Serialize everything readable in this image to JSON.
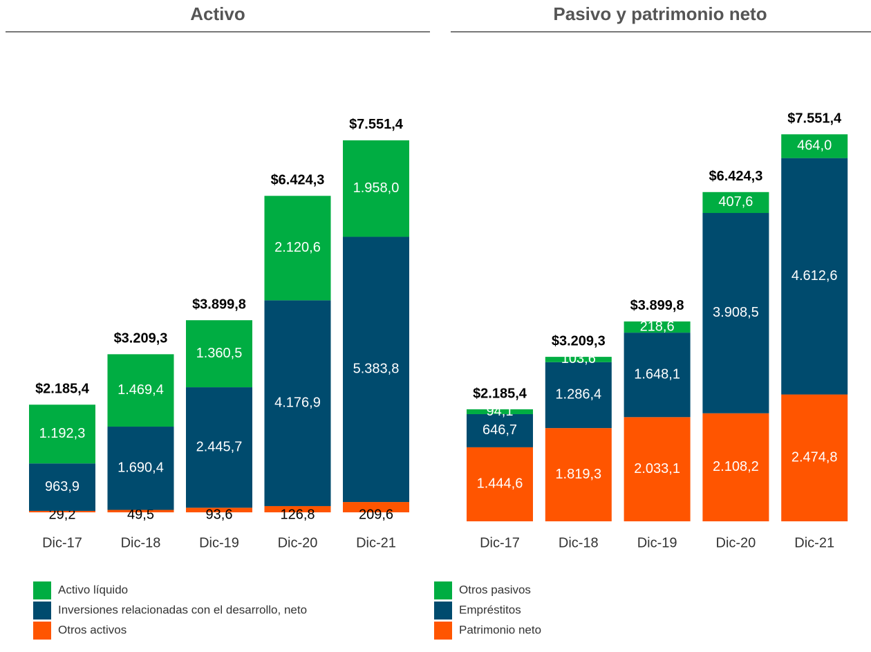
{
  "chart_data": [
    {
      "type": "stacked_bar",
      "title": "Activo",
      "categories": [
        "Dic-17",
        "Dic-18",
        "Dic-19",
        "Dic-20",
        "Dic-21"
      ],
      "ylim": [
        0,
        8000
      ],
      "series": [
        {
          "name": "Otros activos",
          "color": "#ff5500",
          "values": [
            29.2,
            49.5,
            93.6,
            126.8,
            209.6
          ],
          "value_labels": [
            "29,2",
            "49,5",
            "93,6",
            "126,8",
            "209,6"
          ]
        },
        {
          "name": "Inversiones relacionadas con el desarrollo, neto",
          "color": "#004b6e",
          "values": [
            963.9,
            1690.4,
            2445.7,
            4176.9,
            5383.8
          ],
          "value_labels": [
            "963,9",
            "1.690,4",
            "2.445,7",
            "4.176,9",
            "5.383,8"
          ]
        },
        {
          "name": "Activo líquido",
          "color": "#00ad42",
          "values": [
            1192.3,
            1469.4,
            1360.5,
            2120.6,
            1958.0
          ],
          "value_labels": [
            "1.192,3",
            "1.469,4",
            "1.360,5",
            "2.120,6",
            "1.958,0"
          ]
        }
      ],
      "totals": [
        2185.4,
        3209.3,
        3899.8,
        6424.3,
        7551.4
      ],
      "total_labels": [
        "$2.185,4",
        "$3.209,3",
        "$3.899,8",
        "$6.424,3",
        "$7.551,4"
      ]
    },
    {
      "type": "stacked_bar",
      "title": "Pasivo y patrimonio neto",
      "categories": [
        "Dic-17",
        "Dic-18",
        "Dic-19",
        "Dic-20",
        "Dic-21"
      ],
      "ylim": [
        0,
        8000
      ],
      "series": [
        {
          "name": "Patrimonio neto",
          "color": "#ff5500",
          "values": [
            1444.6,
            1819.3,
            2033.1,
            2108.2,
            2474.8
          ],
          "value_labels": [
            "1.444,6",
            "1.819,3",
            "2.033,1",
            "2.108,2",
            "2.474,8"
          ]
        },
        {
          "name": "Empréstitos",
          "color": "#004b6e",
          "values": [
            646.7,
            1286.4,
            1648.1,
            3908.5,
            4612.6
          ],
          "value_labels": [
            "646,7",
            "1.286,4",
            "1.648,1",
            "3.908,5",
            "4.612,6"
          ]
        },
        {
          "name": "Otros pasivos",
          "color": "#00ad42",
          "values": [
            94.1,
            103.6,
            218.6,
            407.6,
            464.0
          ],
          "value_labels": [
            "94,1",
            "103,6",
            "218,6",
            "407,6",
            "464,0"
          ]
        }
      ],
      "totals": [
        2185.4,
        3209.3,
        3899.8,
        6424.3,
        7551.4
      ],
      "total_labels": [
        "$2.185,4",
        "$3.209,3",
        "$3.899,8",
        "$6.424,3",
        "$7.551,4"
      ]
    }
  ]
}
